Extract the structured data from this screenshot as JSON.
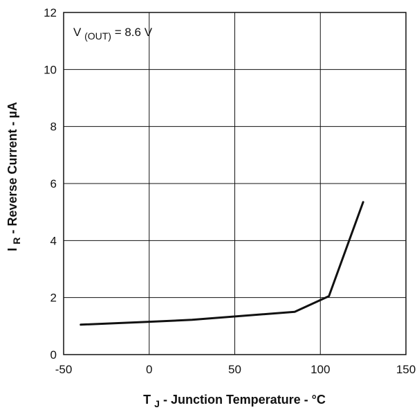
{
  "chart_data": {
    "type": "line",
    "xlabel": {
      "main": "T",
      "sub": "J",
      "rest": " - Junction Temperature - °C"
    },
    "ylabel": {
      "main": "I",
      "sub": "R",
      "rest": " - Reverse Current - µA"
    },
    "annotation": {
      "main": "V",
      "sub": "(OUT)",
      "rest": " = 8.6 V"
    },
    "xlim": [
      -50,
      150
    ],
    "ylim": [
      0,
      12
    ],
    "xticks": [
      -50,
      0,
      50,
      100,
      150
    ],
    "yticks": [
      0,
      2,
      4,
      6,
      8,
      10,
      12
    ],
    "grid": true,
    "series": [
      {
        "color": "#111111",
        "points": [
          {
            "x": -40,
            "y": 1.05
          },
          {
            "x": 0,
            "y": 1.15
          },
          {
            "x": 25,
            "y": 1.22
          },
          {
            "x": 85,
            "y": 1.5
          },
          {
            "x": 105,
            "y": 2.05
          },
          {
            "x": 125,
            "y": 5.35
          }
        ]
      }
    ]
  }
}
